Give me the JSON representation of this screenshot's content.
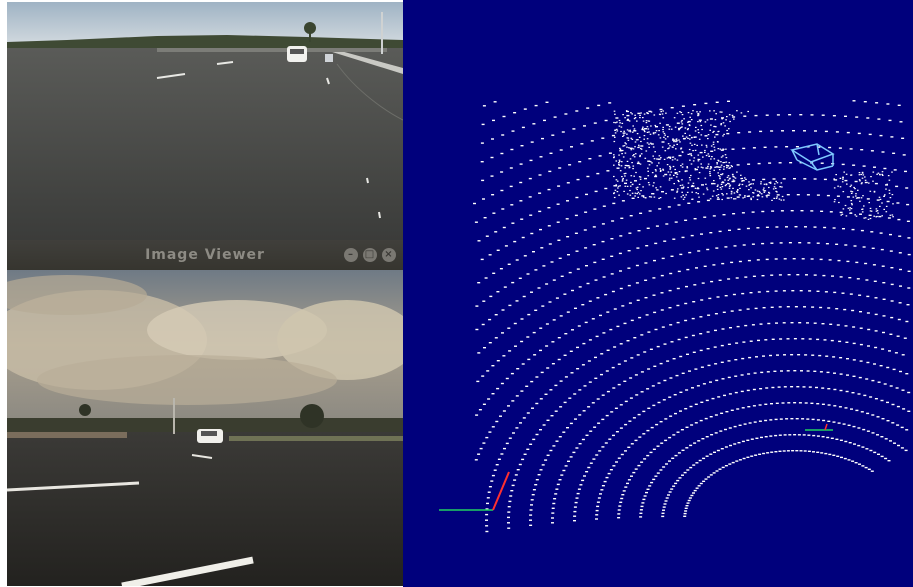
{
  "window": {
    "title": "Image Viewer",
    "buttons": {
      "minimize": "minimize-icon",
      "maximize": "maximize-icon",
      "close": "close-icon"
    }
  },
  "panels": {
    "camera_top": "road camera view",
    "camera_bottom": "road camera view with sky",
    "pointcloud": "lidar point cloud"
  },
  "colors": {
    "pointcloud_background": "#00007c",
    "points": "#ffffff",
    "bbox": "#7ec8ff",
    "axis_x": "#ff3030",
    "axis_y": "#20d060"
  }
}
